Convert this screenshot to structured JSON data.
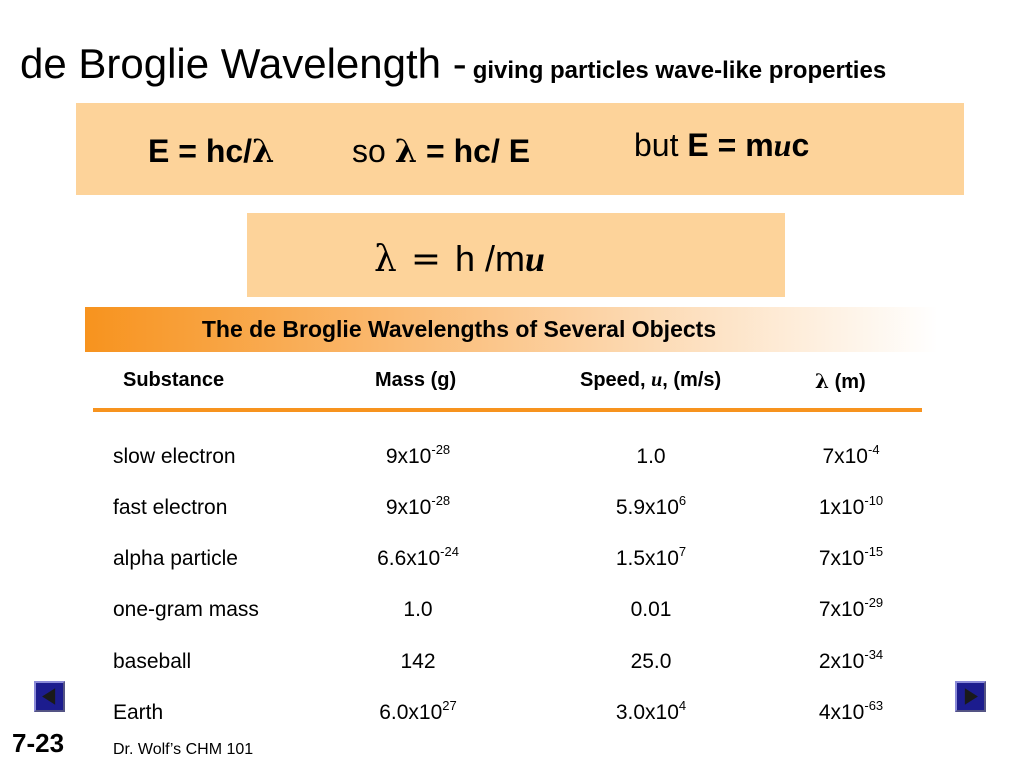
{
  "title": {
    "main": "de Broglie Wavelength -",
    "sub": "giving particles wave-like properties"
  },
  "equation_box": {
    "eq1": "E = hc/",
    "so": "so",
    "eq2_rest": "= hc/ E",
    "but": "but",
    "eq3_left": "E = m",
    "eq3_right": "c"
  },
  "symbols": {
    "lambda": "λ",
    "u": "u",
    "equals": "="
  },
  "formula_box": {
    "rhs": "h /m"
  },
  "table": {
    "title": "The de Broglie Wavelengths of Several Objects",
    "headers": {
      "substance": "Substance",
      "mass": "Mass (g)",
      "speed_prefix": "Speed,",
      "speed_suffix": ", (m/s)",
      "lambda_suffix": "(m)"
    },
    "rows": [
      {
        "name": "slow electron",
        "mass": "9x10",
        "mass_exp": "-28",
        "speed": "1.0",
        "speed_exp": "",
        "lambda": "7x10",
        "lambda_exp": "-4"
      },
      {
        "name": "fast electron",
        "mass": "9x10",
        "mass_exp": "-28",
        "speed": "5.9x10",
        "speed_exp": "6",
        "lambda": "1x10",
        "lambda_exp": "-10"
      },
      {
        "name": "alpha particle",
        "mass": "6.6x10",
        "mass_exp": "-24",
        "speed": "1.5x10",
        "speed_exp": "7",
        "lambda": "7x10",
        "lambda_exp": "-15"
      },
      {
        "name": "one-gram mass",
        "mass": "1.0",
        "mass_exp": "",
        "speed": "0.01",
        "speed_exp": "",
        "lambda": "7x10",
        "lambda_exp": "-29"
      },
      {
        "name": "baseball",
        "mass": "142",
        "mass_exp": "",
        "speed": "25.0",
        "speed_exp": "",
        "lambda": "2x10",
        "lambda_exp": "-34"
      },
      {
        "name": "Earth",
        "mass": "6.0x10",
        "mass_exp": "27",
        "speed": "3.0x10",
        "speed_exp": "4",
        "lambda": "4x10",
        "lambda_exp": "-63"
      }
    ]
  },
  "footer": {
    "slide_number": "7-23",
    "credit": "Dr. Wolf’s CHM 101"
  },
  "nav": {
    "prev_icon": "triangle-left-icon",
    "next_icon": "triangle-right-icon"
  },
  "colors": {
    "box_fill": "#FDD39A",
    "accent_orange": "#F7931E",
    "nav_blue": "#1C1C8E"
  }
}
